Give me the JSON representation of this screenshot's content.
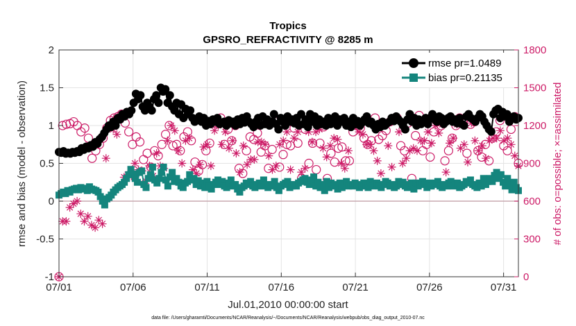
{
  "chart_data": {
    "type": "line",
    "title_line1": "Tropics",
    "title_line2": "GPSRO_REFRACTIVITY @ 8285 m",
    "xlabel": "Jul.01,2010 00:00:00 start",
    "ylabel_left": "rmse and bias (model - observation)",
    "ylabel_right": "# of obs: o=possible; ×=assimilated",
    "footer": "data file: /Users/gharamti/Documents/NCAR/Reanalysis/~/Documents/NCAR/Reanalysis/webpub/obs_diag_output_2010-07.nc",
    "xlim": [
      1,
      32
    ],
    "ylim_left": [
      -1,
      2
    ],
    "ylim_right": [
      0,
      1800
    ],
    "x_ticks": [
      {
        "v": 1,
        "label": "07/01"
      },
      {
        "v": 6,
        "label": "07/06"
      },
      {
        "v": 11,
        "label": "07/11"
      },
      {
        "v": 16,
        "label": "07/16"
      },
      {
        "v": 21,
        "label": "07/21"
      },
      {
        "v": 26,
        "label": "07/26"
      },
      {
        "v": 31,
        "label": "07/31"
      }
    ],
    "yleft_ticks": [
      {
        "v": -1,
        "label": "-1"
      },
      {
        "v": -0.5,
        "label": "-0.5"
      },
      {
        "v": 0,
        "label": "0"
      },
      {
        "v": 0.5,
        "label": "0.5"
      },
      {
        "v": 1,
        "label": "1"
      },
      {
        "v": 1.5,
        "label": "1.5"
      },
      {
        "v": 2,
        "label": "2"
      }
    ],
    "yright_ticks": [
      {
        "v": 0,
        "label": "0"
      },
      {
        "v": 300,
        "label": "300"
      },
      {
        "v": 600,
        "label": "600"
      },
      {
        "v": 900,
        "label": "900"
      },
      {
        "v": 1200,
        "label": "1200"
      },
      {
        "v": 1500,
        "label": "1500"
      },
      {
        "v": 1800,
        "label": "1800"
      }
    ],
    "legend": [
      {
        "name": "rmse pr=1.0489",
        "color": "#000000",
        "marker": "circle"
      },
      {
        "name": "bias pr=0.21135",
        "color": "#14857d",
        "marker": "square"
      }
    ],
    "colors": {
      "rmse": "#000000",
      "bias": "#14857d",
      "obs": "#cc1a66",
      "zero_line": "#c8a8b0",
      "grid": "#e3e3e3"
    },
    "series": [
      {
        "name": "rmse",
        "axis": "left",
        "values": [
          0.65,
          0.64,
          0.66,
          0.63,
          0.64,
          0.63,
          0.65,
          0.64,
          0.66,
          0.65,
          0.7,
          0.68,
          0.72,
          0.7,
          0.74,
          0.72,
          0.78,
          0.76,
          0.82,
          0.85,
          0.9,
          0.95,
          1.0,
          0.98,
          1.05,
          1.0,
          1.1,
          1.08,
          1.15,
          1.12,
          1.18,
          1.15,
          1.2,
          1.3,
          1.42,
          1.35,
          1.4,
          1.25,
          1.2,
          1.3,
          1.25,
          1.2,
          1.35,
          1.4,
          1.3,
          1.5,
          1.45,
          1.48,
          1.3,
          1.4,
          1.25,
          1.2,
          1.3,
          1.15,
          1.28,
          1.1,
          1.22,
          1.15,
          1.2,
          1.1,
          1.05,
          1.08,
          1.12,
          1.05,
          1.1,
          1.0,
          1.06,
          1.02,
          1.08,
          1.05,
          1.1,
          1.02,
          1.04,
          1.05,
          1.0,
          1.07,
          1.03,
          1.05,
          1.0,
          1.08,
          1.02,
          1.1,
          1.04,
          1.12,
          1.05,
          1.02,
          0.98,
          1.05,
          1.1,
          1.0,
          1.12,
          1.02,
          1.08,
          1.0,
          1.05,
          1.15,
          1.02,
          0.95,
          1.1,
          1.05,
          1.0,
          1.12,
          1.05,
          1.08,
          1.03,
          1.1,
          1.0,
          1.15,
          1.02,
          1.08,
          0.98,
          1.15,
          1.05,
          1.12,
          1.0,
          1.08,
          1.02,
          1.05,
          1.0,
          1.1,
          1.02,
          1.05,
          1.12,
          1.0,
          1.08,
          1.05,
          1.1,
          1.0,
          1.05,
          0.98,
          1.1,
          1.02,
          1.06,
          1.0,
          1.04,
          1.08,
          1.12,
          1.03,
          1.05,
          1.0,
          0.95,
          1.02,
          0.98,
          1.05,
          1.0,
          1.03,
          1.05,
          1.1,
          1.06,
          1.12,
          1.08,
          1.05,
          1.0,
          0.95,
          1.08,
          1.15,
          1.05,
          1.1,
          1.0,
          1.08,
          1.02,
          1.05,
          1.1,
          1.02,
          1.1,
          1.15,
          1.08,
          1.05,
          1.12,
          1.1,
          1.02,
          1.05,
          1.1,
          1.12,
          1.05,
          1.08,
          1.03,
          1.1,
          1.02,
          1.0,
          1.12,
          1.15,
          1.1,
          1.08,
          1.05,
          1.1,
          1.15,
          1.12,
          1.05,
          1.0,
          0.95,
          0.92,
          1.15,
          1.2,
          1.22,
          1.1,
          1.18,
          1.12,
          1.15,
          1.05,
          1.1,
          1.12,
          1.08,
          1.1
        ]
      },
      {
        "name": "bias",
        "axis": "left",
        "values": [
          0.08,
          0.1,
          0.12,
          0.1,
          0.14,
          0.12,
          0.15,
          0.16,
          0.17,
          0.15,
          0.18,
          0.16,
          0.17,
          0.14,
          0.19,
          0.16,
          0.15,
          0.14,
          0.12,
          0.06,
          0.0,
          -0.05,
          0.03,
          0.05,
          0.08,
          0.12,
          0.15,
          0.18,
          0.2,
          0.22,
          0.25,
          0.3,
          0.35,
          0.42,
          0.36,
          0.3,
          0.25,
          0.38,
          0.4,
          0.22,
          0.18,
          0.3,
          0.35,
          0.45,
          0.28,
          0.24,
          0.3,
          0.38,
          0.45,
          0.28,
          0.2,
          0.32,
          0.38,
          0.26,
          0.3,
          0.25,
          0.2,
          0.18,
          0.24,
          0.26,
          0.35,
          0.28,
          0.3,
          0.22,
          0.27,
          0.2,
          0.24,
          0.18,
          0.26,
          0.2,
          0.16,
          0.22,
          0.25,
          0.28,
          0.22,
          0.26,
          0.2,
          0.18,
          0.24,
          0.28,
          0.2,
          0.22,
          0.16,
          0.12,
          0.18,
          0.2,
          0.24,
          0.22,
          0.26,
          0.2,
          0.18,
          0.22,
          0.24,
          0.2,
          0.28,
          0.22,
          0.18,
          0.2,
          0.22,
          0.26,
          0.18,
          0.14,
          0.2,
          0.22,
          0.24,
          0.26,
          0.18,
          0.2,
          0.22,
          0.2,
          0.24,
          0.26,
          0.28,
          0.3,
          0.25,
          0.22,
          0.28,
          0.32,
          0.2,
          0.25,
          0.18,
          0.22,
          0.14,
          0.26,
          0.18,
          0.24,
          0.2,
          0.22,
          0.16,
          0.24,
          0.18,
          0.22,
          0.26,
          0.2,
          0.22,
          0.2,
          0.24,
          0.22,
          0.18,
          0.2,
          0.24,
          0.22,
          0.18,
          0.26,
          0.2,
          0.22,
          0.24,
          0.2,
          0.18,
          0.22,
          0.26,
          0.24,
          0.2,
          0.22,
          0.18,
          0.2,
          0.26,
          0.22,
          0.25,
          0.2,
          0.18,
          0.22,
          0.24,
          0.16,
          0.24,
          0.2,
          0.22,
          0.26,
          0.22,
          0.18,
          0.24,
          0.2,
          0.22,
          0.24,
          0.26,
          0.2,
          0.18,
          0.22,
          0.2,
          0.24,
          0.26,
          0.2,
          0.22,
          0.24,
          0.18,
          0.2,
          0.22,
          0.26,
          0.24,
          0.28,
          0.22,
          0.2,
          0.18,
          0.24,
          0.2,
          0.3,
          0.22,
          0.26,
          0.3,
          0.26,
          0.34,
          0.38,
          0.3,
          0.35,
          0.25,
          0.2,
          0.3,
          0.22,
          0.15,
          0.25,
          0.18,
          0.14
        ]
      },
      {
        "name": "obs possible",
        "axis": "right",
        "marker": "o",
        "values": [
          0,
          1200,
          1210,
          1215,
          1230,
          1200,
          1150,
          1180,
          1100,
          940,
          1000,
          1050,
          1100,
          1180,
          1240,
          1260,
          1270,
          1290,
          1220,
          1150,
          1050,
          1110,
          1070,
          930,
          980,
          870,
          1000,
          960,
          1050,
          1130,
          1200,
          1040,
          1050,
          1000,
          1110,
          1150,
          1080,
          910,
          840,
          890,
          1000,
          1060,
          1220,
          1240,
          1260,
          1050,
          1170,
          1080,
          1200,
          860,
          820,
          1000,
          1110,
          1090,
          1140,
          990,
          1040,
          860,
          1010,
          1230,
          870,
          970,
          1050,
          1040,
          1180,
          1060,
          780,
          1170,
          900,
          1060,
          850,
          1060,
          1190,
          780,
          980,
          910,
          1020,
          1030,
          920,
          920,
          1150,
          1200,
          1180,
          1100,
          1050,
          1080,
          1260,
          1090,
          1120,
          1160,
          1230,
          1240,
          1260,
          1040,
          1000,
          1220,
          780,
          1120,
          1280,
          1000,
          1050,
          950,
          1150,
          1230,
          1200,
          920,
          1000,
          1100,
          1200,
          1260,
          1250,
          980,
          1210,
          1230,
          1000,
          950,
          1050,
          920,
          1100,
          1150,
          1240,
          1040,
          1000,
          1170,
          1270,
          900
        ]
      },
      {
        "name": "obs assimilated",
        "axis": "right",
        "marker": "*",
        "values": [
          0,
          440,
          440,
          550,
          580,
          600,
          500,
          440,
          480,
          410,
          390,
          450,
          420,
          940,
          1180,
          1170,
          1130,
          1250,
          790,
          810,
          800,
          900,
          850,
          840,
          760,
          880,
          800,
          980,
          880,
          860,
          1080,
          1200,
          1160,
          1000,
          900,
          1080,
          1100,
          850,
          820,
          890,
          1030,
          1050,
          880,
          1160,
          1200,
          1050,
          1150,
          1020,
          1080,
          980,
          830,
          1040,
          890,
          930,
          930,
          1070,
          1070,
          1050,
          960,
          850,
          880,
          1050,
          1080,
          1150,
          850,
          1100,
          1150,
          830,
          860,
          1150,
          1070,
          1150,
          1170,
          1020,
          950,
          1040,
          1100,
          1090,
          900,
          860,
          1000,
          1200,
          1200,
          1150,
          1130,
          1050,
          1050,
          1000,
          920,
          820,
          1200,
          1040,
          870,
          1250,
          1150,
          900,
          940,
          1000,
          1020,
          1000,
          1080,
          1080,
          1150,
          1060,
          1200,
          1140,
          1210,
          830,
          1060,
          1100,
          1210,
          1020,
          1050,
          910,
          1220,
          1080,
          1000,
          1040,
          940,
          1080,
          1100,
          1100,
          1160,
          1080,
          1100,
          1050,
          960,
          880
        ]
      }
    ]
  }
}
